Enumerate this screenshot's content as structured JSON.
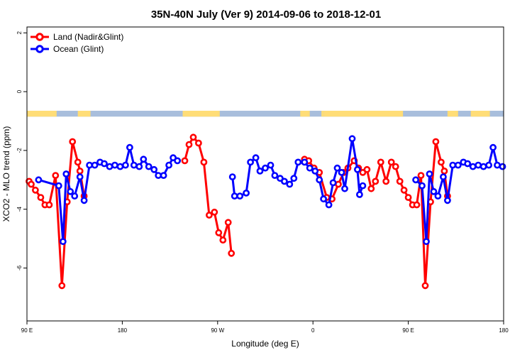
{
  "chart_data": {
    "type": "line",
    "title": "35N-40N July (Ver 9)   2014-09-06 to 2018-12-01",
    "xlabel": "Longitude (deg E)",
    "ylabel": "XCO2 - MLO trend (ppm)",
    "xlim": [
      90,
      540
    ],
    "ylim": [
      -7.8,
      2.2
    ],
    "x_ticks": [
      {
        "value": 90,
        "label": "90 E"
      },
      {
        "value": 180,
        "label": "180"
      },
      {
        "value": 270,
        "label": "90 W"
      },
      {
        "value": 360,
        "label": "0"
      },
      {
        "value": 450,
        "label": "90 E"
      },
      {
        "value": 540,
        "label": "180"
      }
    ],
    "y_ticks": [
      {
        "value": 2,
        "label": "2"
      },
      {
        "value": 0,
        "label": "0"
      },
      {
        "value": -2,
        "label": "-2"
      },
      {
        "value": -4,
        "label": "-4"
      },
      {
        "value": -6,
        "label": "-6"
      }
    ],
    "grid": false,
    "legend_position": "top-left",
    "land_ocean_band": {
      "y_range": [
        -0.65,
        -0.85
      ],
      "land_color": "#ffdd77",
      "ocean_color": "#a8bedc",
      "land_segments": [
        [
          90,
          118
        ],
        [
          138,
          150
        ],
        [
          237,
          272
        ],
        [
          348,
          357
        ],
        [
          370,
          368
        ],
        [
          370,
          445
        ],
        [
          487,
          497
        ],
        [
          509,
          527
        ]
      ]
    },
    "series": [
      {
        "name": "Land (Nadir&Glint)",
        "color": "#ff0000",
        "segments": [
          [
            [
              92,
              -3.05
            ],
            [
              94,
              -3.15
            ],
            [
              98,
              -3.35
            ],
            [
              103,
              -3.6
            ],
            [
              107,
              -3.85
            ],
            [
              111,
              -3.85
            ],
            [
              117,
              -2.85
            ],
            [
              123,
              -6.6
            ],
            [
              128,
              -3.75
            ],
            [
              133,
              -1.7
            ],
            [
              138,
              -2.4
            ],
            [
              140,
              -2.7
            ],
            [
              144,
              -3.55
            ]
          ],
          [
            [
              239,
              -2.35
            ],
            [
              243,
              -1.8
            ],
            [
              247,
              -1.55
            ],
            [
              252,
              -1.75
            ],
            [
              257,
              -2.4
            ],
            [
              262,
              -4.2
            ],
            [
              267,
              -4.1
            ],
            [
              271,
              -4.8
            ],
            [
              275,
              -5.05
            ],
            [
              280,
              -4.45
            ],
            [
              283,
              -5.5
            ]
          ],
          [
            [
              352,
              -2.3
            ],
            [
              356,
              -2.35
            ],
            [
              361,
              -2.6
            ],
            [
              366,
              -2.75
            ],
            [
              373,
              -3.6
            ],
            [
              378,
              -3.65
            ],
            [
              384,
              -3.15
            ],
            [
              389,
              -2.75
            ],
            [
              393,
              -2.6
            ],
            [
              399,
              -2.35
            ],
            [
              403,
              -2.6
            ],
            [
              407,
              -2.75
            ],
            [
              411,
              -2.65
            ],
            [
              415,
              -3.3
            ],
            [
              419,
              -3.05
            ],
            [
              424,
              -2.4
            ],
            [
              429,
              -3.05
            ],
            [
              434,
              -2.4
            ],
            [
              438,
              -2.55
            ],
            [
              442,
              -3.05
            ],
            [
              446,
              -3.35
            ],
            [
              450,
              -3.6
            ],
            [
              454,
              -3.85
            ],
            [
              458,
              -3.85
            ],
            [
              462,
              -2.85
            ],
            [
              466,
              -6.6
            ],
            [
              471,
              -3.75
            ],
            [
              476,
              -1.7
            ],
            [
              481,
              -2.4
            ],
            [
              484,
              -2.7
            ],
            [
              487,
              -3.55
            ]
          ]
        ]
      },
      {
        "name": "Ocean (Glint)",
        "color": "#0000ff",
        "segments": [
          [
            [
              101,
              -3.0
            ],
            [
              120,
              -3.2
            ],
            [
              124,
              -5.1
            ],
            [
              127,
              -2.8
            ],
            [
              131,
              -3.4
            ],
            [
              135,
              -3.55
            ],
            [
              140,
              -2.9
            ],
            [
              144,
              -3.7
            ],
            [
              149,
              -2.5
            ],
            [
              154,
              -2.5
            ],
            [
              159,
              -2.4
            ],
            [
              163,
              -2.45
            ],
            [
              168,
              -2.55
            ],
            [
              173,
              -2.5
            ],
            [
              178,
              -2.55
            ],
            [
              183,
              -2.5
            ],
            [
              187,
              -1.9
            ],
            [
              191,
              -2.5
            ],
            [
              196,
              -2.55
            ],
            [
              200,
              -2.3
            ],
            [
              205,
              -2.55
            ],
            [
              210,
              -2.65
            ],
            [
              214,
              -2.85
            ],
            [
              219,
              -2.85
            ],
            [
              224,
              -2.5
            ],
            [
              228,
              -2.25
            ],
            [
              232,
              -2.35
            ]
          ],
          [
            [
              284,
              -2.9
            ],
            [
              286,
              -3.55
            ],
            [
              291,
              -3.55
            ],
            [
              297,
              -3.45
            ],
            [
              301,
              -2.4
            ],
            [
              306,
              -2.25
            ],
            [
              310,
              -2.7
            ],
            [
              315,
              -2.6
            ],
            [
              320,
              -2.5
            ],
            [
              324,
              -2.85
            ],
            [
              329,
              -2.95
            ],
            [
              333,
              -3.05
            ],
            [
              338,
              -3.15
            ],
            [
              342,
              -2.95
            ],
            [
              346,
              -2.4
            ],
            [
              352,
              -2.4
            ],
            [
              357,
              -2.6
            ],
            [
              362,
              -2.7
            ],
            [
              366,
              -3.0
            ],
            [
              370,
              -3.65
            ],
            [
              375,
              -3.85
            ],
            [
              379,
              -3.1
            ],
            [
              383,
              -2.6
            ],
            [
              387,
              -2.75
            ],
            [
              390,
              -3.3
            ],
            [
              397,
              -1.6
            ],
            [
              402,
              -2.65
            ],
            [
              404,
              -3.5
            ],
            [
              407,
              -3.2
            ]
          ],
          [
            [
              457,
              -3.0
            ],
            [
              463,
              -3.2
            ],
            [
              467,
              -5.1
            ],
            [
              470,
              -2.8
            ],
            [
              474,
              -3.4
            ],
            [
              478,
              -3.55
            ],
            [
              483,
              -2.9
            ],
            [
              487,
              -3.7
            ],
            [
              492,
              -2.5
            ],
            [
              497,
              -2.5
            ],
            [
              502,
              -2.4
            ],
            [
              506,
              -2.45
            ],
            [
              511,
              -2.55
            ],
            [
              516,
              -2.5
            ],
            [
              521,
              -2.55
            ],
            [
              526,
              -2.5
            ],
            [
              530,
              -1.9
            ],
            [
              534,
              -2.5
            ],
            [
              539,
              -2.55
            ]
          ]
        ]
      }
    ]
  }
}
